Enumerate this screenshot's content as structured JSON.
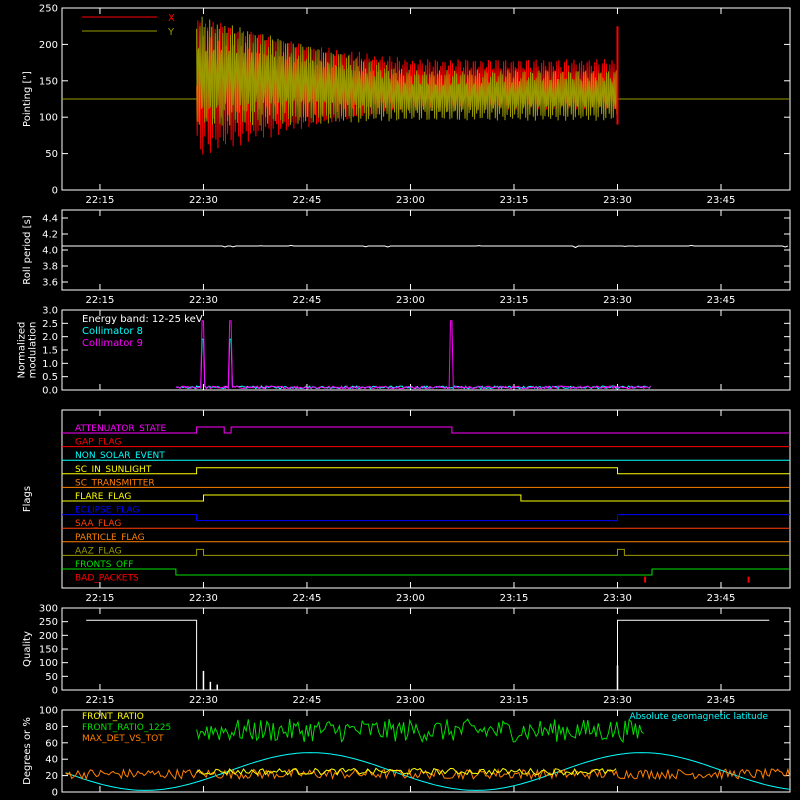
{
  "colors": {
    "background": "#000000",
    "axes": "#ffffff",
    "x_series": "#ff0000",
    "y_series": "#9a9a00",
    "white": "#ffffff",
    "cyan": "#00ffff",
    "magenta": "#ff00ff",
    "green": "#00e000",
    "yellow": "#ffff00",
    "orange": "#ff8000",
    "blue": "#0000ff",
    "red": "#ff0000",
    "olive": "#9a9a00",
    "orange_red": "#ff4000"
  },
  "time_ticks": [
    "22:15",
    "22:30",
    "22:45",
    "23:00",
    "23:15",
    "23:30",
    "23:45"
  ],
  "chart_data": [
    {
      "id": "pointing",
      "type": "line",
      "ylabel": "Pointing [\"]",
      "ylim": [
        0,
        250
      ],
      "yticks": [
        "0",
        "50",
        "100",
        "150",
        "200",
        "250"
      ],
      "xticks": [
        "22:15",
        "22:30",
        "22:45",
        "23:00",
        "23:15",
        "23:30",
        "23:45"
      ],
      "legend_placement": "top-left",
      "series": [
        {
          "name": "X",
          "color": "#ff0000",
          "outside_value": 125,
          "band": [
            {
              "t": "22:29",
              "lo": 45,
              "hi": 240
            },
            {
              "t": "22:45",
              "lo": 85,
              "hi": 200
            },
            {
              "t": "23:00",
              "lo": 110,
              "hi": 180
            },
            {
              "t": "23:30",
              "lo": 110,
              "hi": 180
            }
          ]
        },
        {
          "name": "Y",
          "color": "#9a9a00",
          "outside_value": 125,
          "band": [
            {
              "t": "22:29",
              "lo": 85,
              "hi": 240
            },
            {
              "t": "22:45",
              "lo": 90,
              "hi": 200
            },
            {
              "t": "23:00",
              "lo": 95,
              "hi": 165
            },
            {
              "t": "23:30",
              "lo": 95,
              "hi": 165
            }
          ]
        }
      ]
    },
    {
      "id": "roll",
      "type": "line",
      "ylabel": "Roll period [s]",
      "ylim": [
        3.5,
        4.5
      ],
      "yticks": [
        "3.6",
        "3.8",
        "4.0",
        "4.2",
        "4.4"
      ],
      "xticks": [
        "22:15",
        "22:30",
        "22:45",
        "23:00",
        "23:15",
        "23:30",
        "23:45"
      ],
      "series": [
        {
          "name": "",
          "color": "#ffffff",
          "value": 4.05
        }
      ]
    },
    {
      "id": "modulation",
      "type": "line",
      "ylabel_lines": [
        "Normalized",
        "modulation"
      ],
      "ylim": [
        0,
        3.0
      ],
      "yticks": [
        "0.0",
        "0.5",
        "1.0",
        "1.5",
        "2.0",
        "2.5",
        "3.0"
      ],
      "annotation": "Energy band: 12-25 keV",
      "series": [
        {
          "name": "Collimator 8",
          "color": "#00ffff",
          "spikes": [
            {
              "t": "22:30",
              "v": 1.9
            },
            {
              "t": "22:34",
              "v": 1.9
            }
          ]
        },
        {
          "name": "Collimator 9",
          "color": "#ff00ff",
          "spikes": [
            {
              "t": "22:30",
              "v": 2.6
            },
            {
              "t": "22:34",
              "v": 2.6
            },
            {
              "t": "23:06",
              "v": 2.6
            }
          ]
        }
      ]
    },
    {
      "id": "flags",
      "type": "line",
      "ylabel": "Flags",
      "xticks": [
        "22:15",
        "22:30",
        "22:45",
        "23:00",
        "23:15",
        "23:30",
        "23:45"
      ],
      "series": [
        {
          "name": "ATTENUATOR_STATE",
          "color": "#ff00ff",
          "steps": [
            {
              "t": "22:29",
              "s": 1
            },
            {
              "t": "22:33",
              "s": 0
            },
            {
              "t": "22:34",
              "s": 1
            },
            {
              "t": "23:06",
              "s": 0
            }
          ]
        },
        {
          "name": "GAP_FLAG",
          "color": "#ff0000",
          "steps": []
        },
        {
          "name": "NON_SOLAR_EVENT",
          "color": "#00ffff",
          "steps": []
        },
        {
          "name": "SC_IN_SUNLIGHT",
          "color": "#ffff00",
          "steps": [
            {
              "t": "22:29",
              "s": 1
            },
            {
              "t": "23:30",
              "s": 0
            }
          ]
        },
        {
          "name": "SC_TRANSMITTER",
          "color": "#ff8000",
          "steps": []
        },
        {
          "name": "FLARE_FLAG",
          "color": "#ffff00",
          "steps": [
            {
              "t": "22:30",
              "s": 1
            },
            {
              "t": "23:16",
              "s": 0
            }
          ]
        },
        {
          "name": "ECLIPSE_FLAG",
          "color": "#0000ff",
          "steps": [
            {
              "t": "22:29",
              "s": -1
            },
            {
              "t": "23:30",
              "s": 0
            }
          ]
        },
        {
          "name": "SAA_FLAG",
          "color": "#ff4000",
          "steps": []
        },
        {
          "name": "PARTICLE_FLAG",
          "color": "#ff8000",
          "steps": []
        },
        {
          "name": "AAZ_FLAG",
          "color": "#9a9a00",
          "steps": [
            {
              "t": "22:29",
              "s": 1
            },
            {
              "t": "22:30",
              "s": 0
            },
            {
              "t": "23:30",
              "s": 1
            },
            {
              "t": "23:31",
              "s": 0
            }
          ]
        },
        {
          "name": "FRONTS_OFF",
          "color": "#00e000",
          "steps": [
            {
              "t": "22:26",
              "s": -1
            },
            {
              "t": "23:35",
              "s": 0
            }
          ]
        },
        {
          "name": "BAD_PACKETS",
          "color": "#ff0000",
          "ticks": [
            "23:34",
            "23:49"
          ]
        }
      ]
    },
    {
      "id": "quality",
      "type": "line",
      "ylabel": "Quality",
      "ylim": [
        0,
        300
      ],
      "yticks": [
        "0",
        "50",
        "100",
        "150",
        "200",
        "250",
        "300"
      ],
      "xticks": [
        "22:15",
        "22:30",
        "22:45",
        "23:00",
        "23:15",
        "23:30",
        "23:45"
      ],
      "series": [
        {
          "name": "",
          "color": "#ffffff",
          "points": [
            {
              "t": "22:13",
              "v": 255
            },
            {
              "t": "22:29",
              "v": 255
            },
            {
              "t": "22:29",
              "v": 0
            },
            {
              "t": "23:30",
              "v": 0
            },
            {
              "t": "23:30",
              "v": 255
            },
            {
              "t": "23:52",
              "v": 255
            }
          ]
        }
      ]
    },
    {
      "id": "front",
      "type": "line",
      "ylabel": "Degrees or %",
      "ylim": [
        0,
        100
      ],
      "yticks": [
        "0",
        "20",
        "40",
        "60",
        "80",
        "100"
      ],
      "series": [
        {
          "name": "FRONT_RATIO",
          "color": "#ffff00",
          "level": 25
        },
        {
          "name": "FRONT_RATIO_1225",
          "color": "#00e000",
          "level": 75
        },
        {
          "name": "MAX_DET_VS_TOT",
          "color": "#ff8000",
          "level": 22
        },
        {
          "name": "Absolute geomagnetic latitude",
          "color": "#00ffff",
          "level": 25
        }
      ]
    }
  ]
}
